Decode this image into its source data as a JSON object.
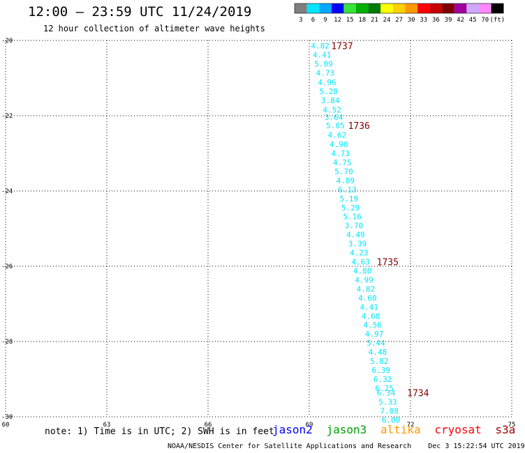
{
  "header": {
    "title": "12:00 – 23:59 UTC 11/24/2019",
    "subtitle": "12 hour collection of altimeter wave heights"
  },
  "color_scale": {
    "labels": [
      "3",
      "6",
      "9",
      "12",
      "15",
      "18",
      "21",
      "24",
      "27",
      "30",
      "33",
      "36",
      "39",
      "42",
      "45",
      "70",
      "(ft)"
    ],
    "colors": [
      "#7f7f7f",
      "#00e5ff",
      "#00a9ff",
      "#0000ff",
      "#39e339",
      "#00b000",
      "#007a00",
      "#ffff00",
      "#ffd000",
      "#ff9900",
      "#ff0000",
      "#c80000",
      "#800000",
      "#a000a0",
      "#cfa8ff",
      "#ff88ff",
      "#000000"
    ]
  },
  "footer": {
    "note": "note: 1) Time is in UTC; 2) SWH is in feet",
    "missions": [
      {
        "name": "jason2",
        "color": "#0000ee"
      },
      {
        "name": "jason3",
        "color": "#00a000"
      },
      {
        "name": "altika",
        "color": "#ff9900"
      },
      {
        "name": "cryosat",
        "color": "#ff0000"
      },
      {
        "name": "s3a",
        "color": "#a00000"
      }
    ],
    "credit": "NOAA/NESDIS Center for Satellite Applications and Research",
    "timestamp": "Dec  3 15:22:54 UTC 2019"
  },
  "chart_data": {
    "type": "scatter",
    "title": "",
    "xlabel": "",
    "ylabel": "",
    "xlim": [
      60,
      75
    ],
    "ylim": [
      -30,
      -20
    ],
    "x_ticks": [
      "60",
      "63",
      "66",
      "69",
      "72",
      "75"
    ],
    "y_ticks": [
      "-20",
      "-22",
      "-24",
      "-26",
      "-28",
      "-30"
    ],
    "grid": true,
    "series": [
      {
        "name": "",
        "color": "#00e5ff",
        "points": [
          {
            "x": 69.05,
            "y": -20.14,
            "label": "4.82"
          },
          {
            "x": 69.1,
            "y": -20.38,
            "label": "4.41"
          },
          {
            "x": 69.15,
            "y": -20.62,
            "label": "5.09"
          },
          {
            "x": 69.2,
            "y": -20.86,
            "label": "4.73"
          },
          {
            "x": 69.25,
            "y": -21.11,
            "label": "4.96"
          },
          {
            "x": 69.3,
            "y": -21.35,
            "label": "5.28"
          },
          {
            "x": 69.35,
            "y": -21.59,
            "label": "3.84"
          },
          {
            "x": 69.4,
            "y": -21.84,
            "label": "4.52"
          },
          {
            "x": 69.45,
            "y": -22.04,
            "label": "3.64"
          },
          {
            "x": 69.5,
            "y": -22.26,
            "label": "5.05"
          },
          {
            "x": 69.55,
            "y": -22.51,
            "label": "4.62"
          },
          {
            "x": 69.6,
            "y": -22.76,
            "label": "4.90"
          },
          {
            "x": 69.65,
            "y": -23.0,
            "label": "4.73"
          },
          {
            "x": 69.7,
            "y": -23.24,
            "label": "4.75"
          },
          {
            "x": 69.75,
            "y": -23.48,
            "label": "5.70"
          },
          {
            "x": 69.8,
            "y": -23.72,
            "label": "4.89"
          },
          {
            "x": 69.85,
            "y": -23.96,
            "label": "6.13"
          },
          {
            "x": 69.9,
            "y": -24.2,
            "label": "5.19"
          },
          {
            "x": 69.95,
            "y": -24.44,
            "label": "5.29"
          },
          {
            "x": 70.0,
            "y": -24.68,
            "label": "5.16"
          },
          {
            "x": 70.05,
            "y": -24.92,
            "label": "3.70"
          },
          {
            "x": 70.1,
            "y": -25.16,
            "label": "4.49"
          },
          {
            "x": 70.15,
            "y": -25.4,
            "label": "3.39"
          },
          {
            "x": 70.2,
            "y": -25.64,
            "label": "4.23"
          },
          {
            "x": 70.25,
            "y": -25.88,
            "label": "4.63"
          },
          {
            "x": 70.3,
            "y": -26.12,
            "label": "4.80"
          },
          {
            "x": 70.35,
            "y": -26.36,
            "label": "4.99"
          },
          {
            "x": 70.4,
            "y": -26.6,
            "label": "4.82"
          },
          {
            "x": 70.45,
            "y": -26.84,
            "label": "4.60"
          },
          {
            "x": 70.5,
            "y": -27.08,
            "label": "4.41"
          },
          {
            "x": 70.55,
            "y": -27.32,
            "label": "4.68"
          },
          {
            "x": 70.6,
            "y": -27.56,
            "label": "4.56"
          },
          {
            "x": 70.65,
            "y": -27.8,
            "label": "4.97"
          },
          {
            "x": 70.7,
            "y": -28.04,
            "label": "5.44"
          },
          {
            "x": 70.75,
            "y": -28.28,
            "label": "4.48"
          },
          {
            "x": 70.8,
            "y": -28.52,
            "label": "5.82"
          },
          {
            "x": 70.85,
            "y": -28.76,
            "label": "6.39"
          },
          {
            "x": 70.9,
            "y": -29.0,
            "label": "6.32"
          },
          {
            "x": 70.95,
            "y": -29.24,
            "label": "6.25"
          },
          {
            "x": 71.0,
            "y": -29.36,
            "label": "6.34"
          },
          {
            "x": 71.05,
            "y": -29.6,
            "label": "5.33"
          },
          {
            "x": 71.1,
            "y": -29.84,
            "label": "7.08"
          },
          {
            "x": 71.15,
            "y": -30.08,
            "label": "6.00"
          }
        ]
      }
    ],
    "annotations": [
      {
        "text": "1737",
        "x": 69.65,
        "y": -20.14,
        "color": "#800000"
      },
      {
        "text": "1736",
        "x": 70.15,
        "y": -22.26,
        "color": "#800000"
      },
      {
        "text": "1735",
        "x": 71.0,
        "y": -25.88,
        "color": "#800000"
      },
      {
        "text": "1734",
        "x": 71.9,
        "y": -29.36,
        "color": "#800000"
      }
    ]
  }
}
